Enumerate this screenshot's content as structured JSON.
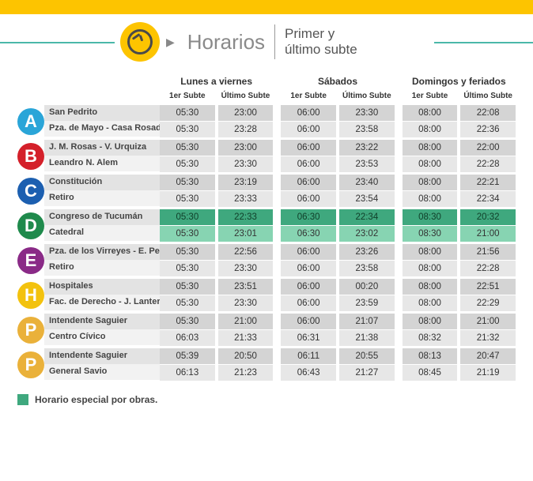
{
  "colors": {
    "top_bar": "#fdc400",
    "header_line": "#4bb8a9",
    "clock_bg": "#fdc400",
    "special_dark": "#3fa87e",
    "special_light": "#87d4b2",
    "cell_dark": "#d4d4d4",
    "cell_light": "#e7e7e7",
    "station_dark": "#e3e3e3",
    "station_light": "#f2f2f2"
  },
  "header": {
    "title": "Horarios",
    "subtitle_line1": "Primer y",
    "subtitle_line2": "último subte"
  },
  "day_groups": [
    {
      "label": "Lunes a viernes"
    },
    {
      "label": "Sábados"
    },
    {
      "label": "Domingos y feriados"
    }
  ],
  "sub_labels": {
    "first": "1er Subte",
    "last": "Último Subte"
  },
  "legend": "Horario especial por obras.",
  "lines": [
    {
      "id": "A",
      "color": "#2aa5d8",
      "special": false,
      "stations": [
        "San Pedrito",
        "Pza. de Mayo - Casa Rosada"
      ],
      "times": [
        [
          [
            "05:30",
            "23:00"
          ],
          [
            "06:00",
            "23:30"
          ],
          [
            "08:00",
            "22:08"
          ]
        ],
        [
          [
            "05:30",
            "23:28"
          ],
          [
            "06:00",
            "23:58"
          ],
          [
            "08:00",
            "22:36"
          ]
        ]
      ]
    },
    {
      "id": "B",
      "color": "#d4202a",
      "special": false,
      "stations": [
        "J. M. Rosas - V. Urquiza",
        "Leandro N. Alem"
      ],
      "times": [
        [
          [
            "05:30",
            "23:00"
          ],
          [
            "06:00",
            "23:22"
          ],
          [
            "08:00",
            "22:00"
          ]
        ],
        [
          [
            "05:30",
            "23:30"
          ],
          [
            "06:00",
            "23:53"
          ],
          [
            "08:00",
            "22:28"
          ]
        ]
      ]
    },
    {
      "id": "C",
      "color": "#1c5fb0",
      "special": false,
      "stations": [
        "Constitución",
        "Retiro"
      ],
      "times": [
        [
          [
            "05:30",
            "23:19"
          ],
          [
            "06:00",
            "23:40"
          ],
          [
            "08:00",
            "22:21"
          ]
        ],
        [
          [
            "05:30",
            "23:33"
          ],
          [
            "06:00",
            "23:54"
          ],
          [
            "08:00",
            "22:34"
          ]
        ]
      ]
    },
    {
      "id": "D",
      "color": "#1f8a4c",
      "special": true,
      "stations": [
        "Congreso de Tucumán",
        "Catedral"
      ],
      "times": [
        [
          [
            "05:30",
            "22:33"
          ],
          [
            "06:30",
            "22:34"
          ],
          [
            "08:30",
            "20:32"
          ]
        ],
        [
          [
            "05:30",
            "23:01"
          ],
          [
            "06:30",
            "23:02"
          ],
          [
            "08:30",
            "21:00"
          ]
        ]
      ]
    },
    {
      "id": "E",
      "color": "#8a2a87",
      "special": false,
      "stations": [
        "Pza. de los Virreyes - E. Perón",
        "Retiro"
      ],
      "times": [
        [
          [
            "05:30",
            "22:56"
          ],
          [
            "06:00",
            "23:26"
          ],
          [
            "08:00",
            "21:56"
          ]
        ],
        [
          [
            "05:30",
            "23:30"
          ],
          [
            "06:00",
            "23:58"
          ],
          [
            "08:00",
            "22:28"
          ]
        ]
      ]
    },
    {
      "id": "H",
      "color": "#f3c20e",
      "special": false,
      "stations": [
        "Hospitales",
        "Fac. de Derecho - J. Lanteri"
      ],
      "times": [
        [
          [
            "05:30",
            "23:51"
          ],
          [
            "06:00",
            "00:20"
          ],
          [
            "08:00",
            "22:51"
          ]
        ],
        [
          [
            "05:30",
            "23:30"
          ],
          [
            "06:00",
            "23:59"
          ],
          [
            "08:00",
            "22:29"
          ]
        ]
      ]
    },
    {
      "id": "P",
      "color": "#eab13a",
      "special": false,
      "stations": [
        "Intendente Saguier",
        "Centro Cívico"
      ],
      "times": [
        [
          [
            "05:30",
            "21:00"
          ],
          [
            "06:00",
            "21:07"
          ],
          [
            "08:00",
            "21:00"
          ]
        ],
        [
          [
            "06:03",
            "21:33"
          ],
          [
            "06:31",
            "21:38"
          ],
          [
            "08:32",
            "21:32"
          ]
        ]
      ]
    },
    {
      "id": "P",
      "color": "#eab13a",
      "special": false,
      "stations": [
        "Intendente Saguier",
        "General Savio"
      ],
      "times": [
        [
          [
            "05:39",
            "20:50"
          ],
          [
            "06:11",
            "20:55"
          ],
          [
            "08:13",
            "20:47"
          ]
        ],
        [
          [
            "06:13",
            "21:23"
          ],
          [
            "06:43",
            "21:27"
          ],
          [
            "08:45",
            "21:19"
          ]
        ]
      ]
    }
  ]
}
